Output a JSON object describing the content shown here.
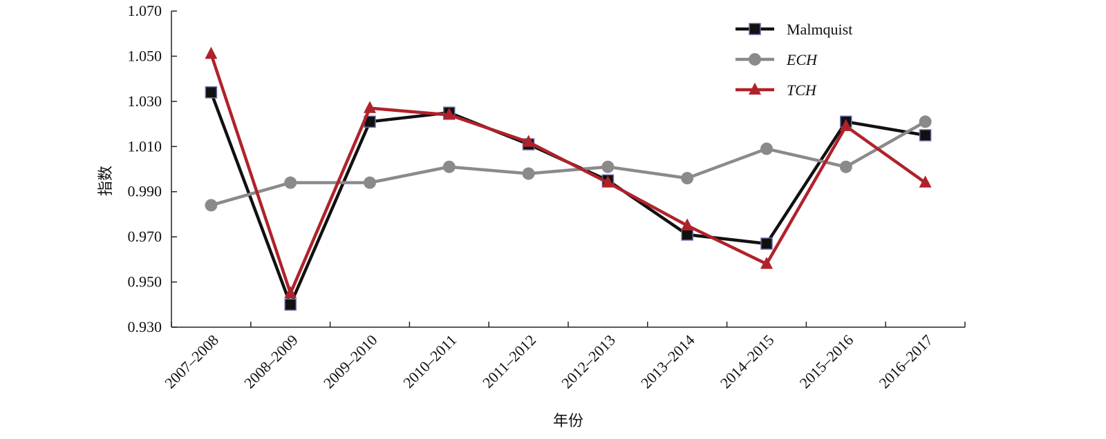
{
  "chart_data": {
    "type": "line",
    "categories": [
      "2007–2008",
      "2008–2009",
      "2009–2010",
      "2010–2011",
      "2011–2012",
      "2012–2013",
      "2013–2014",
      "2014–2015",
      "2015–2016",
      "2016–2017"
    ],
    "xlabel": "年份",
    "ylabel": "指数",
    "ylim": [
      0.93,
      1.07
    ],
    "yticks": [
      "0.930",
      "0.950",
      "0.970",
      "0.990",
      "1.010",
      "1.030",
      "1.050",
      "1.070"
    ],
    "grid": false,
    "legend_position": "top-right",
    "series": [
      {
        "name": "Malmquist",
        "color": "#111111",
        "marker": "square",
        "italic": false,
        "values": [
          1.034,
          0.94,
          1.021,
          1.025,
          1.011,
          0.995,
          0.971,
          0.967,
          1.021,
          1.015
        ]
      },
      {
        "name": "ECH",
        "color": "#8a8a8d",
        "marker": "circle",
        "italic": true,
        "values": [
          0.984,
          0.994,
          0.994,
          1.001,
          0.998,
          1.001,
          0.996,
          1.009,
          1.001,
          1.021
        ]
      },
      {
        "name": "TCH",
        "color": "#b0222b",
        "marker": "triangle",
        "italic": true,
        "values": [
          1.051,
          0.945,
          1.027,
          1.024,
          1.012,
          0.994,
          0.975,
          0.958,
          1.019,
          0.994
        ]
      }
    ]
  }
}
